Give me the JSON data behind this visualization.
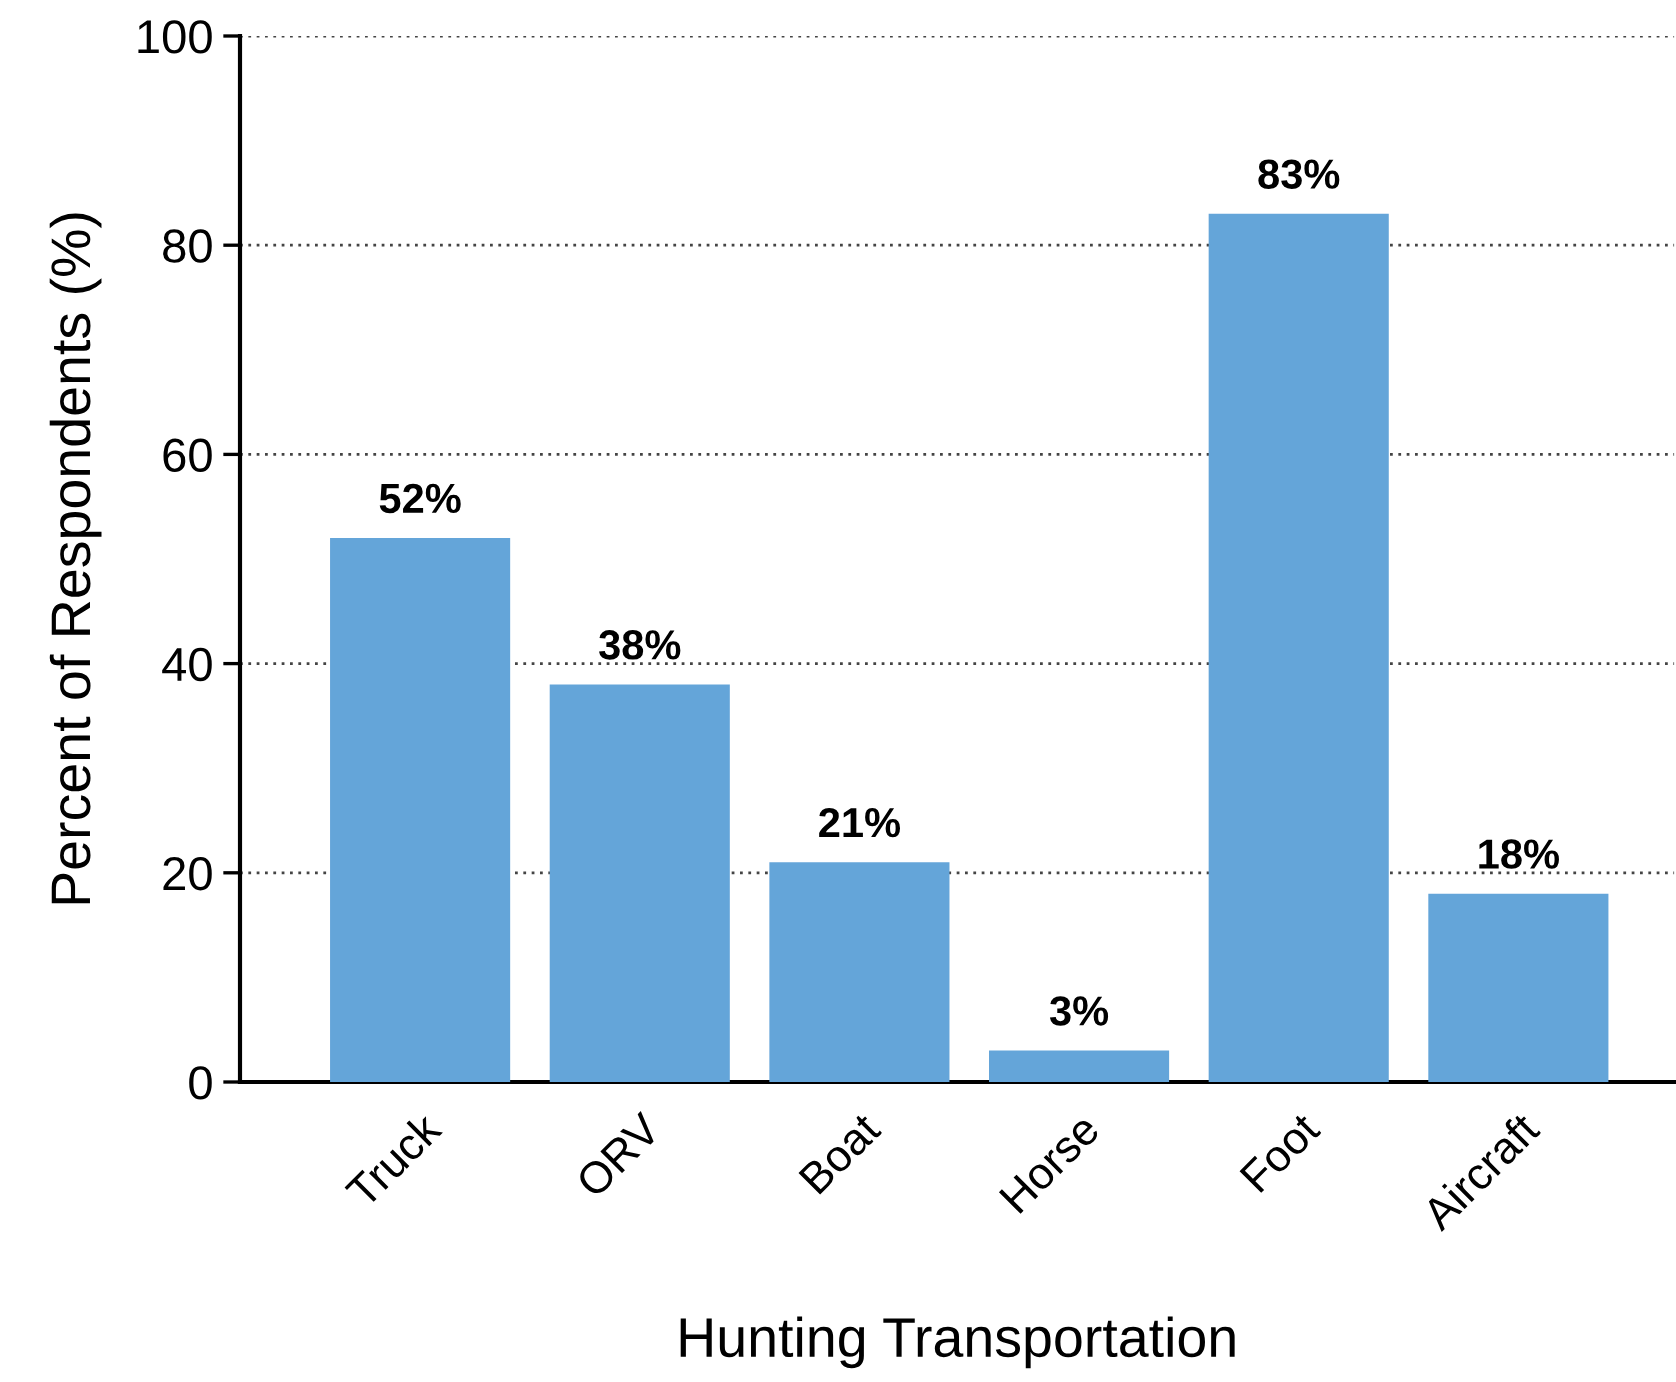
{
  "chart_data": {
    "type": "bar",
    "xlabel": "Hunting Transportation",
    "ylabel": "Percent of Respondents (%)",
    "categories": [
      "Truck",
      "ORV",
      "Boat",
      "Horse",
      "Foot",
      "Aircraft"
    ],
    "values": [
      52,
      38,
      21,
      3,
      83,
      18
    ],
    "value_labels": [
      "52%",
      "38%",
      "21%",
      "3%",
      "83%",
      "18%"
    ],
    "color": "#64a5d9",
    "ylim": [
      0,
      100
    ],
    "yticks": [
      0,
      20,
      40,
      60,
      80,
      100
    ],
    "grid": "y",
    "legend": false
  }
}
